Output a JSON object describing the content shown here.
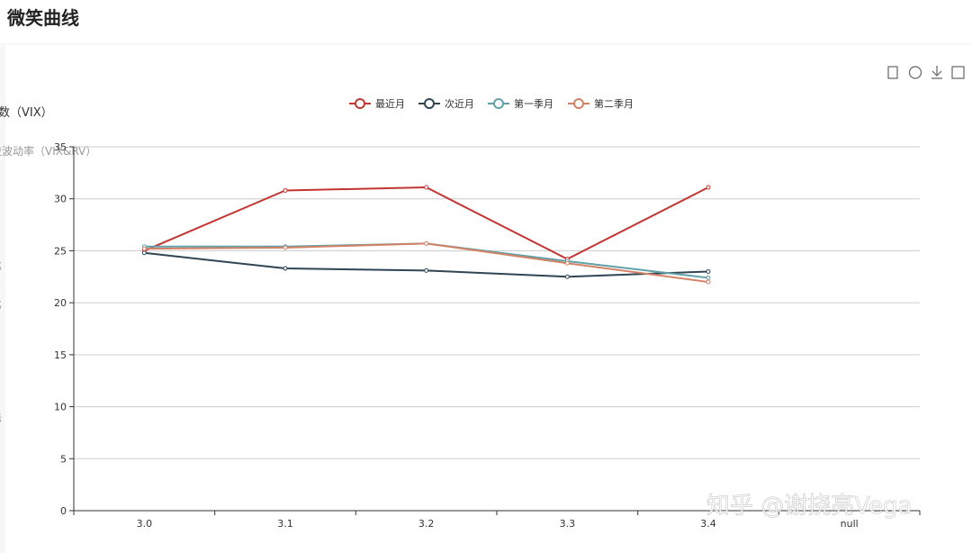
{
  "chart_data": {
    "type": "line",
    "title": "微笑曲线",
    "categories": [
      "3.0",
      "3.1",
      "3.2",
      "3.3",
      "3.4",
      "null"
    ],
    "series": [
      {
        "name": "最近月",
        "color": "#c23531",
        "values": [
          25.0,
          30.8,
          31.1,
          24.2,
          31.1,
          null
        ]
      },
      {
        "name": "次近月",
        "color": "#2f4554",
        "values": [
          24.8,
          23.3,
          23.1,
          22.5,
          23.0,
          null
        ]
      },
      {
        "name": "第一季月",
        "color": "#61a0a8",
        "values": [
          25.4,
          25.4,
          25.7,
          24.0,
          22.4,
          null
        ]
      },
      {
        "name": "第二季月",
        "color": "#d48265",
        "values": [
          25.2,
          25.3,
          25.7,
          23.8,
          22.0,
          null
        ]
      }
    ],
    "ylim": [
      0,
      35
    ],
    "yticks": [
      0,
      5,
      10,
      15,
      20,
      25,
      30,
      35
    ],
    "grid": true,
    "legend": "top"
  },
  "sidebar": [
    "数（VIX）",
    "史波动率（VIX&RV）",
    "比",
    "比",
    "标"
  ],
  "watermark": "知乎 @谢挠亮Vega"
}
